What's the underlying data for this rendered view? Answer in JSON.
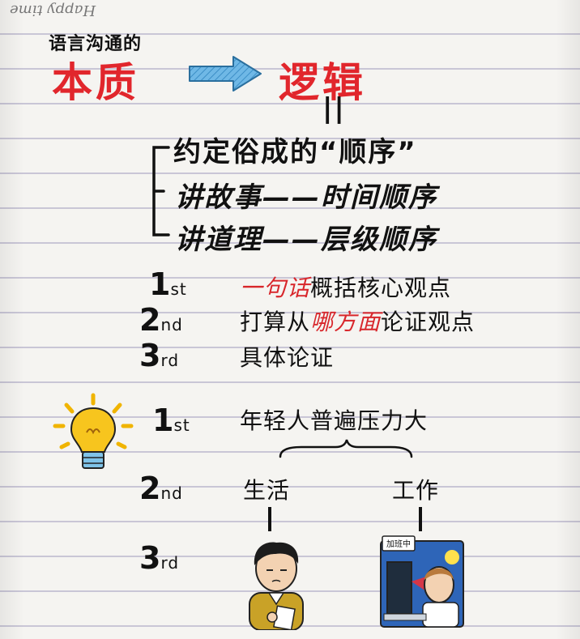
{
  "header": {
    "handwriting": "Happy time"
  },
  "title": {
    "subtitle": "语言沟通的",
    "left_word": "本质",
    "right_word": "逻辑",
    "equals_mark": "||"
  },
  "definition": {
    "main": "约定俗成的“顺序”",
    "story": "讲故事——时间顺序",
    "reason": "讲道理——层级顺序"
  },
  "steps": [
    {
      "num": "1",
      "suffix": "st",
      "pre": "",
      "highlight": "一句话",
      "post": "概括核心观点"
    },
    {
      "num": "2",
      "suffix": "nd",
      "pre": "打算从",
      "highlight": "哪方面",
      "post": "论证观点"
    },
    {
      "num": "3",
      "suffix": "rd",
      "pre": "具体论证",
      "highlight": "",
      "post": ""
    }
  ],
  "example": {
    "rank1": {
      "num": "1",
      "suffix": "st"
    },
    "rank2": {
      "num": "2",
      "suffix": "nd"
    },
    "rank3": {
      "num": "3",
      "suffix": "rd"
    },
    "top": "年轻人普遍压力大",
    "left": "生活",
    "right": "工作",
    "work_sign": "加班中"
  },
  "colors": {
    "accent_red": "#e1262c",
    "arrow_blue": "#4ea3d8",
    "bulb_yellow": "#f6c21a"
  }
}
